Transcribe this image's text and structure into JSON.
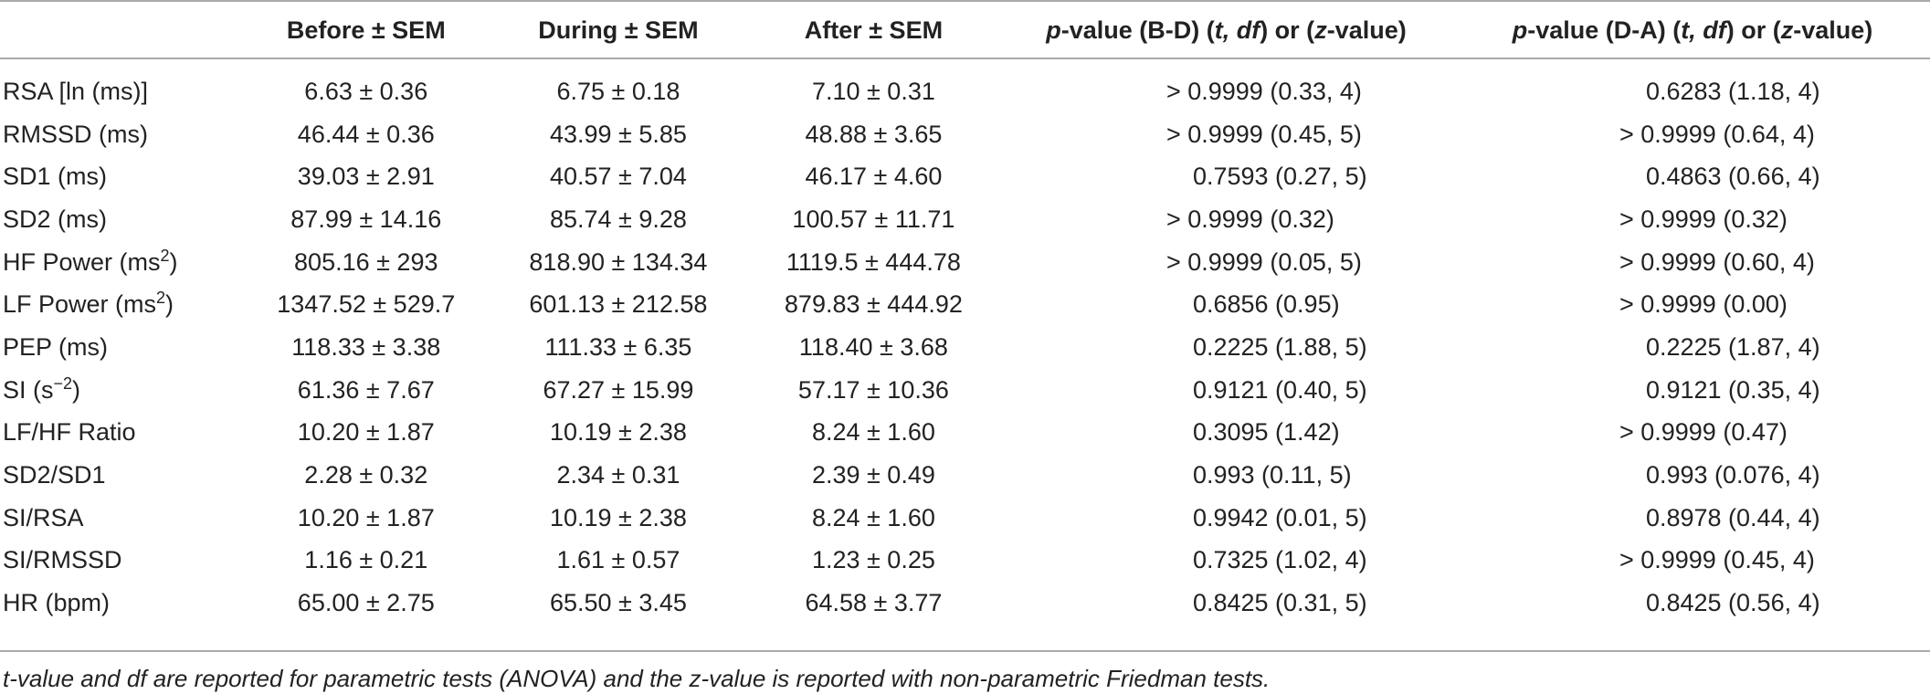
{
  "table": {
    "headers": {
      "col0": "",
      "col1": "Before ± SEM",
      "col2": "During ± SEM",
      "col3": "After ± SEM",
      "col4": {
        "p": "p",
        "rest1": "-value (B-D) (",
        "t": "t, df",
        "rest2": ") or (",
        "z": "z",
        "rest3": "-value)"
      },
      "col5": {
        "p": "p",
        "rest1": "-value (D-A) (",
        "t": "t, df",
        "rest2": ") or (",
        "z": "z",
        "rest3": "-value)"
      }
    },
    "rows": [
      {
        "label": "RSA [ln (ms)]",
        "sup": "",
        "label_tail": "",
        "before": "6.63 ± 0.36",
        "during": "6.75 ± 0.18",
        "after": "7.10 ± 0.31",
        "p_bd": "> 0.9999 (0.33, 4)",
        "p_da": "0.6283 (1.18, 4)"
      },
      {
        "label": "RMSSD  (ms)",
        "sup": "",
        "label_tail": "",
        "before": "46.44 ± 0.36",
        "during": "43.99 ± 5.85",
        "after": "48.88 ± 3.65",
        "p_bd": "> 0.9999 (0.45, 5)",
        "p_da": "> 0.9999 (0.64, 4)"
      },
      {
        "label": "SD1  (ms)",
        "sup": "",
        "label_tail": "",
        "before": "39.03 ± 2.91",
        "during": "40.57 ± 7.04",
        "after": "46.17 ± 4.60",
        "p_bd": "0.7593 (0.27, 5)",
        "p_da": "0.4863 (0.66, 4)"
      },
      {
        "label": "SD2  (ms)",
        "sup": "",
        "label_tail": "",
        "before": "87.99 ± 14.16",
        "during": "85.74 ± 9.28",
        "after": "100.57 ± 11.71",
        "p_bd": "> 0.9999 (0.32)",
        "p_da": "> 0.9999 (0.32)"
      },
      {
        "label": "HF Power  (ms",
        "sup": "2",
        "label_tail": ")",
        "before": "805.16 ± 293",
        "during": "818.90 ± 134.34",
        "after": "1119.5 ± 444.78",
        "p_bd": "> 0.9999 (0.05, 5)",
        "p_da": "> 0.9999 (0.60, 4)"
      },
      {
        "label": "LF Power  (ms",
        "sup": "2",
        "label_tail": ")",
        "before": "1347.52 ± 529.7",
        "during": "601.13 ± 212.58",
        "after": "879.83 ± 444.92",
        "p_bd": "0.6856 (0.95)",
        "p_da": "> 0.9999 (0.00)"
      },
      {
        "label": "PEP  (ms)",
        "sup": "",
        "label_tail": "",
        "before": "118.33 ± 3.38",
        "during": "111.33 ± 6.35",
        "after": "118.40 ± 3.68",
        "p_bd": "0.2225 (1.88, 5)",
        "p_da": "0.2225 (1.87, 4)"
      },
      {
        "label": "SI  (s",
        "sup": "−2",
        "label_tail": ")",
        "before": "61.36 ± 7.67",
        "during": "67.27 ± 15.99",
        "after": "57.17 ± 10.36",
        "p_bd": "0.9121 (0.40, 5)",
        "p_da": "0.9121 (0.35, 4)"
      },
      {
        "label": "LF/HF Ratio",
        "sup": "",
        "label_tail": "",
        "before": "10.20 ± 1.87",
        "during": "10.19 ± 2.38",
        "after": "8.24 ± 1.60",
        "p_bd": "0.3095 (1.42)",
        "p_da": "> 0.9999 (0.47)"
      },
      {
        "label": "SD2/SD1",
        "sup": "",
        "label_tail": "",
        "before": "2.28 ± 0.32",
        "during": "2.34 ± 0.31",
        "after": "2.39 ± 0.49",
        "p_bd": "0.993 (0.11, 5)",
        "p_da": "0.993 (0.076, 4)"
      },
      {
        "label": "SI/RSA",
        "sup": "",
        "label_tail": "",
        "before": "10.20 ± 1.87",
        "during": "10.19 ± 2.38",
        "after": "8.24 ± 1.60",
        "p_bd": "0.9942 (0.01, 5)",
        "p_da": "0.8978 (0.44, 4)"
      },
      {
        "label": "SI/RMSSD",
        "sup": "",
        "label_tail": "",
        "before": "1.16 ± 0.21",
        "during": "1.61 ± 0.57",
        "after": "1.23 ± 0.25",
        "p_bd": "0.7325 (1.02, 4)",
        "p_da": "> 0.9999 (0.45, 4)"
      },
      {
        "label": "HR  (bpm)",
        "sup": "",
        "label_tail": "",
        "before": "65.00 ± 2.75",
        "during": "65.50 ± 3.45",
        "after": "64.58 ± 3.77",
        "p_bd": "0.8425 (0.31, 5)",
        "p_da": "0.8425 (0.56, 4)"
      }
    ]
  },
  "footnote": "t-value and df are reported for parametric tests  (ANOVA) and the z-value is reported with non-parametric Friedman tests."
}
